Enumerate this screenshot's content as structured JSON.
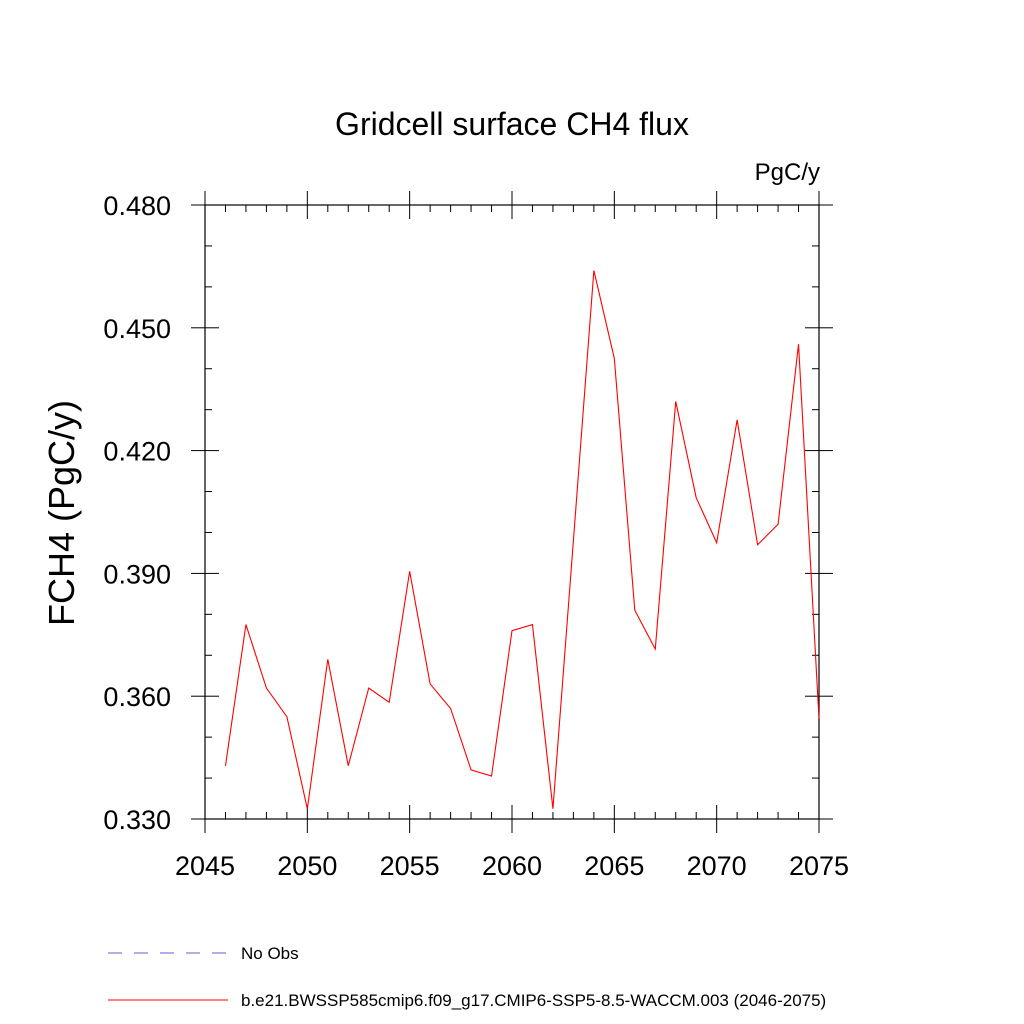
{
  "chart_data": {
    "type": "line",
    "title": "Gridcell surface CH4 flux",
    "units_label": "PgC/y",
    "ylabel": "FCH4  (PgC/y)",
    "xlabel": "",
    "xlim": [
      2045,
      2075
    ],
    "ylim": [
      0.33,
      0.48
    ],
    "x_ticks": [
      2045,
      2050,
      2055,
      2060,
      2065,
      2070,
      2075
    ],
    "x_tick_labels": [
      "2045",
      "2050",
      "2055",
      "2060",
      "2065",
      "2070",
      "2075"
    ],
    "y_ticks": [
      0.33,
      0.36,
      0.39,
      0.42,
      0.45,
      0.48
    ],
    "y_tick_labels": [
      "0.330",
      "0.360",
      "0.390",
      "0.420",
      "0.450",
      "0.480"
    ],
    "grid": false,
    "legend_position": "bottom-left",
    "series": [
      {
        "name": "b.e21.BWSSP585cmip6.f09_g17.CMIP6-SSP5-8.5-WACCM.003 (2046-2075)",
        "color": "#ff0000",
        "style": "solid",
        "x": [
          2046,
          2047,
          2048,
          2049,
          2050,
          2051,
          2052,
          2053,
          2054,
          2055,
          2056,
          2057,
          2058,
          2059,
          2060,
          2061,
          2062,
          2063,
          2064,
          2065,
          2066,
          2067,
          2068,
          2069,
          2070,
          2071,
          2072,
          2073,
          2074,
          2075
        ],
        "values": [
          0.343,
          0.3775,
          0.362,
          0.355,
          0.3325,
          0.369,
          0.343,
          0.362,
          0.3585,
          0.3905,
          0.363,
          0.357,
          0.342,
          0.3405,
          0.376,
          0.3775,
          0.3325,
          0.398,
          0.464,
          0.4425,
          0.381,
          0.3715,
          0.432,
          0.4085,
          0.3975,
          0.4275,
          0.397,
          0.402,
          0.446,
          0.3545
        ]
      },
      {
        "name": "No Obs",
        "color": "#6a5acd",
        "style": "dashed",
        "x": [],
        "values": []
      }
    ]
  }
}
